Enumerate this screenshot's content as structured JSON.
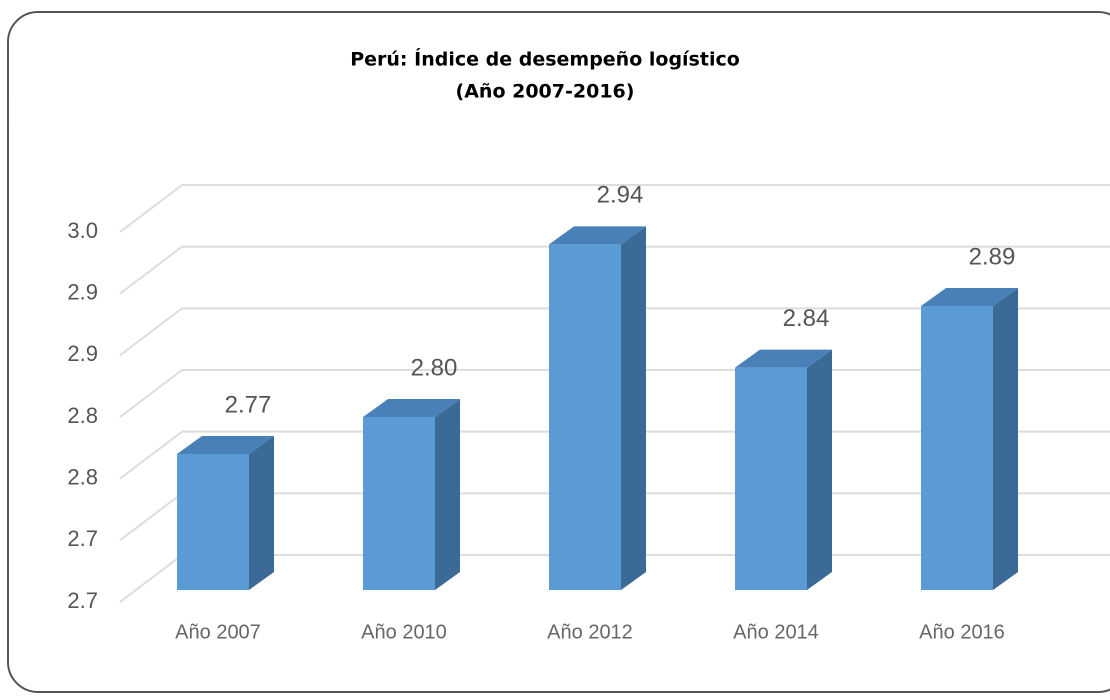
{
  "chart_data": {
    "type": "bar3d",
    "title": "Perú: Índice de desempeño logístico",
    "subtitle": "(Año 2007-2016)",
    "categories": [
      "Año 2007",
      "Año 2010",
      "Año 2012",
      "Año 2014",
      "Año 2016"
    ],
    "values": [
      2.77,
      2.8,
      2.94,
      2.84,
      2.89
    ],
    "value_labels": [
      "2.77",
      "2.80",
      "2.94",
      "2.84",
      "2.89"
    ],
    "color": "#5b9bd5",
    "ylim": [
      2.65,
      2.95
    ],
    "yticks": [
      {
        "value": 2.65,
        "label": "2.7"
      },
      {
        "value": 2.7,
        "label": "2.7"
      },
      {
        "value": 2.75,
        "label": "2.8"
      },
      {
        "value": 2.8,
        "label": "2.8"
      },
      {
        "value": 2.85,
        "label": "2.9"
      },
      {
        "value": 2.9,
        "label": "2.9"
      },
      {
        "value": 2.95,
        "label": "3.0"
      }
    ],
    "grid": true
  }
}
